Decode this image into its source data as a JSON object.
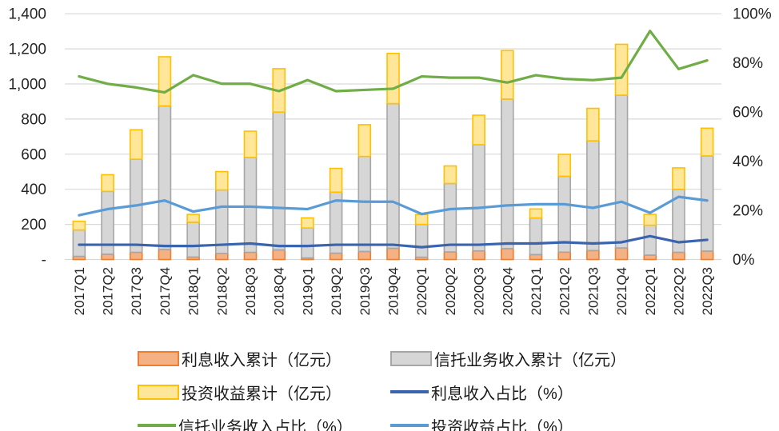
{
  "chart_data": {
    "type": "combo-stacked-bar-and-line",
    "categories": [
      "2017Q1",
      "2017Q2",
      "2017Q3",
      "2017Q4",
      "2018Q1",
      "2018Q2",
      "2018Q3",
      "2018Q4",
      "2019Q1",
      "2019Q2",
      "2019Q3",
      "2019Q4",
      "2020Q1",
      "2020Q2",
      "2020Q3",
      "2020Q4",
      "2021Q1",
      "2021Q2",
      "2021Q3",
      "2021Q4",
      "2022Q1",
      "2022Q2",
      "2022Q3"
    ],
    "bar_series": [
      {
        "name": "利息收入累计（亿元）",
        "axis": "left",
        "fill": "#F4B183",
        "border": "#ED7D31",
        "values": [
          18,
          30,
          41,
          57,
          14,
          34,
          41,
          55,
          9,
          36,
          46,
          64,
          13,
          43,
          49,
          62,
          28,
          42,
          51,
          66,
          25,
          41,
          48
        ]
      },
      {
        "name": "信托业务收入累计（亿元）",
        "axis": "left",
        "fill": "#D6D6D6",
        "border": "#A6A6A6",
        "values": [
          150,
          358,
          530,
          818,
          198,
          362,
          540,
          785,
          170,
          348,
          541,
          824,
          187,
          390,
          605,
          852,
          208,
          432,
          625,
          870,
          170,
          358,
          542
        ]
      },
      {
        "name": "投资收益累计（亿元）",
        "axis": "left",
        "fill": "#FFE699",
        "border": "#FFC000",
        "values": [
          50,
          95,
          168,
          280,
          45,
          105,
          150,
          247,
          58,
          135,
          181,
          286,
          56,
          100,
          168,
          276,
          52,
          125,
          185,
          290,
          62,
          123,
          158
        ]
      }
    ],
    "line_series": [
      {
        "name": "利息收入占比（%）",
        "axis": "right",
        "color": "#3A64AE",
        "values": [
          6,
          6,
          6,
          5.5,
          5.5,
          6,
          6.5,
          5.5,
          5.5,
          6,
          6,
          6,
          5,
          6,
          6,
          6.5,
          6.5,
          7,
          6.5,
          7,
          9.5,
          7,
          8
        ]
      },
      {
        "name": "信托业务收入占比（%）",
        "axis": "right",
        "color": "#70AD47",
        "values": [
          74.5,
          71.5,
          70,
          68,
          75,
          71.5,
          71.5,
          68.5,
          73,
          68.5,
          69,
          69.5,
          74.5,
          74,
          74,
          72,
          75,
          73.5,
          73,
          74,
          93,
          77.5,
          81
        ]
      },
      {
        "name": "投资收益占比（%）",
        "axis": "right",
        "color": "#5B9BD5",
        "values": [
          18,
          20.5,
          22,
          24,
          19.5,
          21.5,
          21.5,
          21,
          20.5,
          24,
          23.5,
          23.5,
          18.5,
          20.5,
          21,
          22,
          22.5,
          22.5,
          21,
          23.5,
          19,
          25.5,
          24
        ]
      }
    ],
    "left_axis": {
      "min": 0,
      "max": 1400,
      "step": 200,
      "tick_labels": [
        "-",
        "200",
        "400",
        "600",
        "800",
        "1,000",
        "1,200",
        "1,400"
      ]
    },
    "right_axis": {
      "min": 0,
      "max": 100,
      "step": 20,
      "tick_labels": [
        "0%",
        "20%",
        "40%",
        "60%",
        "80%",
        "100%"
      ]
    },
    "grid": "horizontal",
    "gridline_color": "#D9D9D9",
    "legend_position": "bottom",
    "legend": {
      "items": [
        {
          "label": "利息收入累计（亿元）",
          "marker": "rect",
          "fill": "#F4B183",
          "border": "#ED7D31"
        },
        {
          "label": "信托业务收入累计（亿元）",
          "marker": "rect",
          "fill": "#D6D6D6",
          "border": "#A6A6A6"
        },
        {
          "label": "投资收益累计（亿元）",
          "marker": "rect",
          "fill": "#FFE699",
          "border": "#FFC000"
        },
        {
          "label": "利息收入占比（%）",
          "marker": "line",
          "color": "#3A64AE"
        },
        {
          "label": "信托业务收入占比（%）",
          "marker": "line",
          "color": "#70AD47"
        },
        {
          "label": "投资收益占比（%）",
          "marker": "line",
          "color": "#5B9BD5"
        }
      ]
    }
  }
}
